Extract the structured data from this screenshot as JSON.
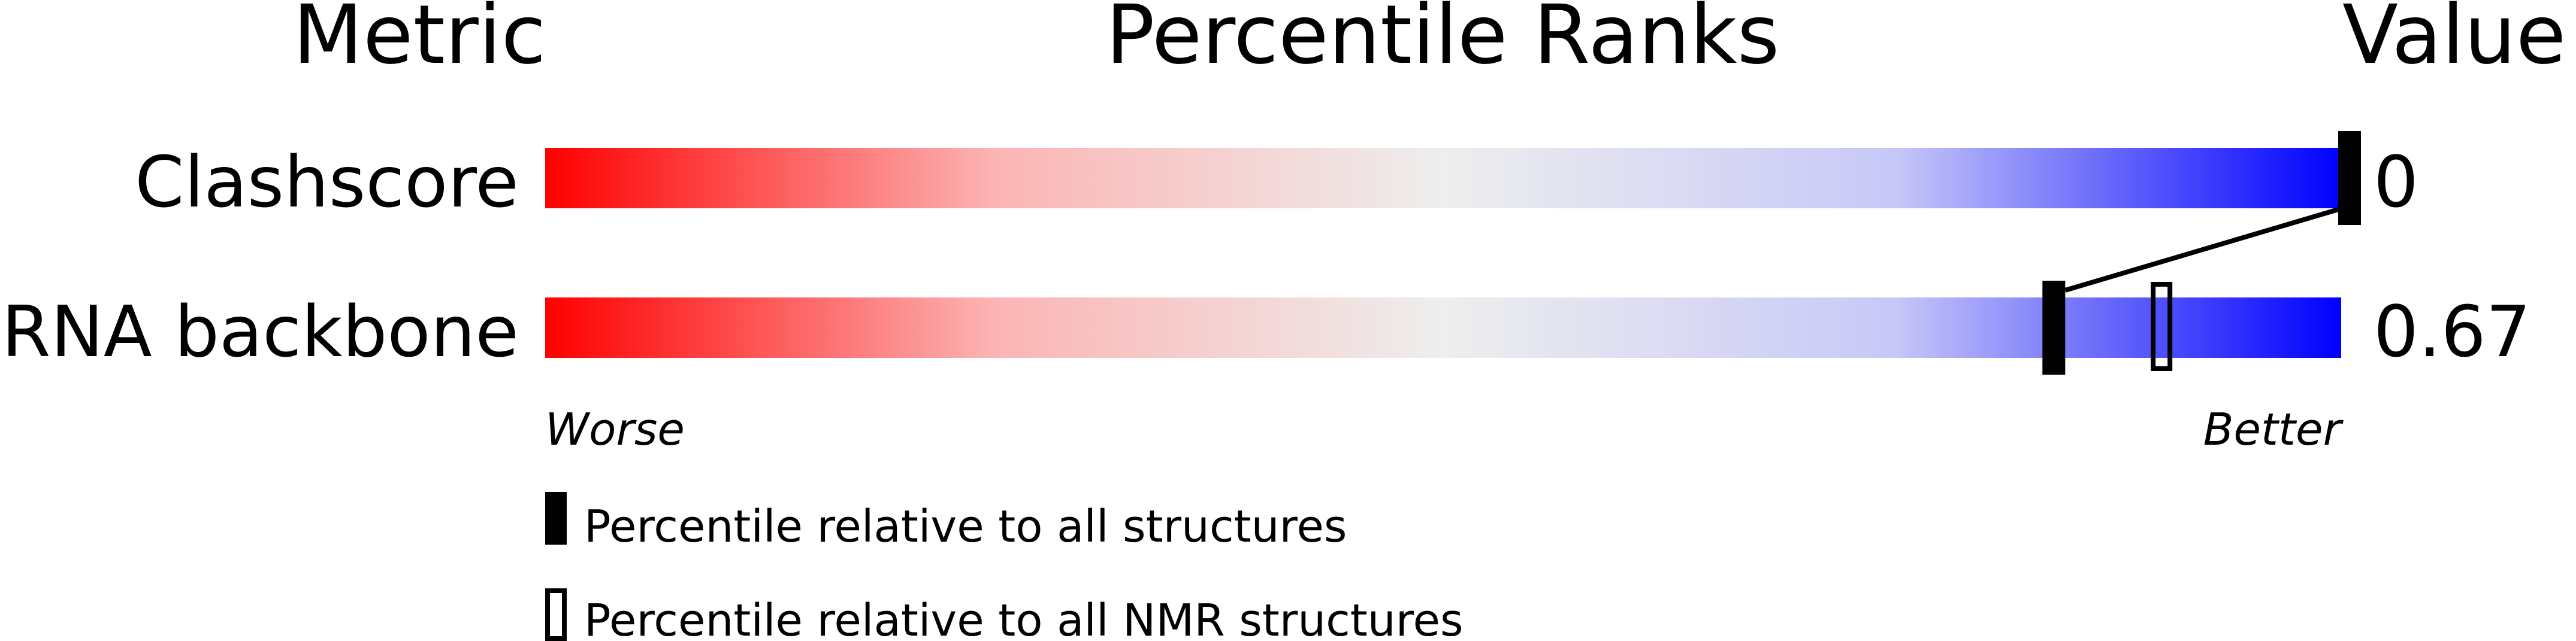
{
  "chart_data": {
    "type": "percentile-slider",
    "headers": {
      "metric": "Metric",
      "ranks": "Percentile Ranks",
      "value": "Value"
    },
    "xlim": [
      0,
      100
    ],
    "scale_labels": {
      "worse": "Worse",
      "better": "Better"
    },
    "gradient_colors": [
      "#ff0000",
      "#eeeeee",
      "#0000ff"
    ],
    "metrics": [
      {
        "name": "Clashscore",
        "value": "0",
        "percentile_all": 100,
        "percentile_nmr": null
      },
      {
        "name": "RNA backbone",
        "value": "0.67",
        "percentile_all": 84,
        "percentile_nmr": 90
      }
    ],
    "legend": [
      {
        "marker": "filled",
        "label": "Percentile relative to all structures"
      },
      {
        "marker": "open",
        "label": "Percentile relative to all NMR structures"
      }
    ]
  }
}
